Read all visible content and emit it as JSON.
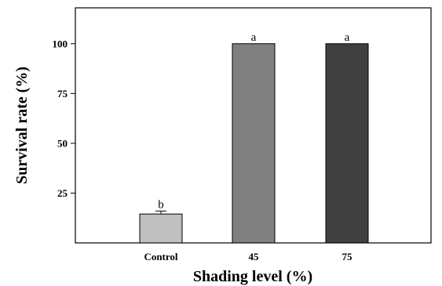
{
  "chart_data": {
    "type": "bar",
    "categories": [
      "Control",
      "45",
      "75"
    ],
    "values": [
      14.5,
      100,
      100
    ],
    "errors": [
      1.5,
      0,
      0
    ],
    "significance_labels": [
      "b",
      "a",
      "a"
    ],
    "colors": [
      "#c0c0c0",
      "#808080",
      "#404040"
    ],
    "xlabel": "Shading level (%)",
    "ylabel": "Survival rate (%)",
    "ylim": [
      0,
      118
    ],
    "yticks": [
      25,
      50,
      75,
      100
    ],
    "grid": false
  }
}
